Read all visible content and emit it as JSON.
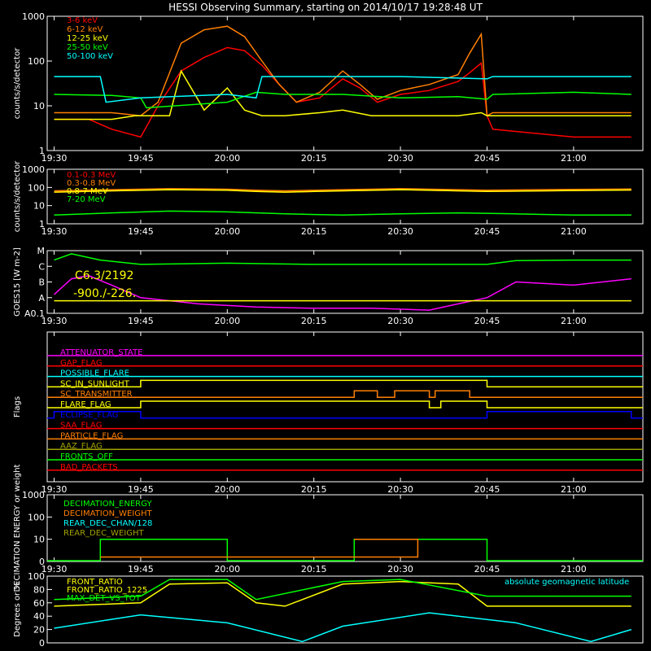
{
  "title": "HESSI Observing Summary, starting on 2014/10/17 19:28:48 UT",
  "colors": {
    "red": "#ff0000",
    "orange": "#ff7f00",
    "yellow": "#ffff00",
    "green": "#00ff00",
    "cyan": "#00ffff",
    "magenta": "#ff00ff",
    "blue": "#0000ff",
    "white": "#ffffff",
    "olive": "#a0a000",
    "lightgreen": "#00ff80",
    "brown": "#c07010"
  },
  "time_ticks": [
    "19:30",
    "19:45",
    "20:00",
    "20:15",
    "20:30",
    "20:45",
    "21:00"
  ],
  "chart_data": [
    {
      "type": "line",
      "panel": "x-ray-low",
      "ylabel": "counts/s/detector",
      "yscale": "log",
      "ylim": [
        1,
        1000
      ],
      "y_ticks": [
        "1",
        "10",
        "100",
        "1000"
      ],
      "x_unit": "UT time",
      "xlim": [
        "19:30",
        "21:10"
      ],
      "series": [
        {
          "name": "3-6 keV",
          "color": "#ff0000",
          "x": [
            "19:30",
            "19:36",
            "19:40",
            "19:45",
            "19:48",
            "19:52",
            "19:56",
            "20:00",
            "20:03",
            "20:06",
            "20:09",
            "20:12",
            "20:16",
            "20:20",
            "20:23",
            "20:26",
            "20:30",
            "20:35",
            "20:40",
            "20:42",
            "20:44",
            "20:45",
            "20:46",
            "21:00",
            "21:10"
          ],
          "y": [
            5,
            5,
            3,
            2,
            10,
            60,
            120,
            200,
            170,
            80,
            30,
            12,
            15,
            40,
            25,
            12,
            18,
            22,
            35,
            55,
            90,
            6,
            3,
            2,
            2
          ]
        },
        {
          "name": "6-12 keV",
          "color": "#ff7f00",
          "x": [
            "19:30",
            "19:40",
            "19:45",
            "19:48",
            "19:52",
            "19:56",
            "20:00",
            "20:03",
            "20:06",
            "20:09",
            "20:12",
            "20:16",
            "20:20",
            "20:23",
            "20:26",
            "20:30",
            "20:35",
            "20:40",
            "20:42",
            "20:44",
            "20:45",
            "20:46",
            "21:00",
            "21:10"
          ],
          "y": [
            7,
            7,
            6,
            12,
            250,
            500,
            600,
            350,
            100,
            30,
            12,
            20,
            60,
            30,
            14,
            22,
            30,
            50,
            150,
            400,
            6,
            7,
            7,
            7
          ]
        },
        {
          "name": "12-25 keV",
          "color": "#ffff00",
          "x": [
            "19:30",
            "19:40",
            "19:44",
            "19:45",
            "19:50",
            "19:52",
            "19:56",
            "20:00",
            "20:03",
            "20:06",
            "20:10",
            "20:16",
            "20:20",
            "20:25",
            "20:30",
            "20:40",
            "20:44",
            "20:45",
            "20:46",
            "21:00",
            "21:10"
          ],
          "y": [
            5,
            5,
            6,
            6,
            6,
            60,
            8,
            25,
            8,
            6,
            6,
            7,
            8,
            6,
            6,
            6,
            7,
            6,
            6,
            6,
            6
          ]
        },
        {
          "name": "25-50 keV",
          "color": "#00ff00",
          "x": [
            "19:30",
            "19:40",
            "19:45",
            "19:46",
            "20:00",
            "20:05",
            "20:10",
            "20:20",
            "20:30",
            "20:40",
            "20:45",
            "20:46",
            "21:00",
            "21:10"
          ],
          "y": [
            18,
            17,
            15,
            9,
            12,
            20,
            18,
            18,
            15,
            16,
            14,
            18,
            20,
            18
          ]
        },
        {
          "name": "50-100 keV",
          "color": "#00ffff",
          "x": [
            "19:30",
            "19:38",
            "19:39",
            "19:45",
            "20:00",
            "20:05",
            "20:06",
            "20:20",
            "20:30",
            "20:45",
            "20:46",
            "21:00",
            "21:10"
          ],
          "y": [
            45,
            45,
            12,
            15,
            18,
            15,
            45,
            45,
            45,
            40,
            45,
            45,
            45
          ]
        }
      ]
    },
    {
      "type": "line",
      "panel": "gamma",
      "ylabel": "counts/s/detector",
      "yscale": "log",
      "ylim": [
        1,
        1000
      ],
      "y_ticks": [
        "1",
        "10",
        "100",
        "1000"
      ],
      "xlim": [
        "19:30",
        "21:10"
      ],
      "series": [
        {
          "name": "0.1-0.3 MeV",
          "color": "#ff0000",
          "x": [
            "19:30",
            "19:40",
            "19:50",
            "20:00",
            "20:05",
            "20:10",
            "20:20",
            "20:30",
            "20:40",
            "20:45",
            "21:00",
            "21:10"
          ],
          "y": [
            55,
            65,
            75,
            70,
            60,
            55,
            65,
            75,
            65,
            60,
            68,
            72
          ]
        },
        {
          "name": "0.3-0.8 MeV",
          "color": "#ff7f00",
          "x": [
            "19:30",
            "19:40",
            "19:50",
            "20:00",
            "20:05",
            "20:10",
            "20:20",
            "20:30",
            "20:40",
            "20:45",
            "21:00",
            "21:10"
          ],
          "y": [
            65,
            75,
            85,
            80,
            70,
            65,
            75,
            85,
            75,
            70,
            78,
            82
          ]
        },
        {
          "name": "0.8-7 MeV",
          "color": "#ffff00",
          "x": [
            "19:30",
            "19:40",
            "19:50",
            "20:00",
            "20:05",
            "20:10",
            "20:20",
            "20:30",
            "20:40",
            "20:45",
            "21:00",
            "21:10"
          ],
          "y": [
            55,
            65,
            75,
            70,
            60,
            55,
            65,
            75,
            65,
            60,
            68,
            72
          ]
        },
        {
          "name": "7-20 MeV",
          "color": "#00ff00",
          "x": [
            "19:30",
            "19:40",
            "19:50",
            "20:00",
            "20:10",
            "20:20",
            "20:30",
            "20:40",
            "20:50",
            "21:00",
            "21:10"
          ],
          "y": [
            3,
            4,
            5,
            4.5,
            3.5,
            3,
            3.5,
            4,
            3.5,
            3,
            3
          ]
        }
      ]
    },
    {
      "type": "line",
      "panel": "goes",
      "ylabel": "GOES15 [W m-2]",
      "y_ticks": [
        "A0.1",
        "A",
        "B",
        "C",
        "M"
      ],
      "annotations": [
        "C6.3/2192",
        "-900./-226."
      ],
      "xlim": [
        "19:30",
        "21:10"
      ],
      "series": [
        {
          "color": "#00ff00",
          "x": [
            "19:30",
            "19:33",
            "19:38",
            "19:45",
            "20:00",
            "20:15",
            "20:30",
            "20:45",
            "20:50",
            "21:00",
            "21:10"
          ],
          "y": [
            0.85,
            0.95,
            0.85,
            0.78,
            0.8,
            0.78,
            0.78,
            0.78,
            0.84,
            0.85,
            0.85
          ]
        },
        {
          "color": "#ff00ff",
          "x": [
            "19:30",
            "19:33",
            "19:36",
            "19:40",
            "19:45",
            "19:55",
            "20:05",
            "20:15",
            "20:25",
            "20:35",
            "20:40",
            "20:45",
            "20:50",
            "21:00",
            "21:10"
          ],
          "y": [
            0.3,
            0.55,
            0.6,
            0.45,
            0.25,
            0.15,
            0.1,
            0.08,
            0.08,
            0.05,
            0.15,
            0.25,
            0.5,
            0.45,
            0.55
          ]
        },
        {
          "color": "#ffff00",
          "x": [
            "19:30",
            "21:10"
          ],
          "y": [
            0.2,
            0.2
          ]
        }
      ]
    },
    {
      "type": "line",
      "panel": "flags",
      "ylabel": "Flags",
      "series": [
        {
          "name": "ATTENUATOR_STATE",
          "color": "#ff00ff",
          "value": 0
        },
        {
          "name": "GAP_FLAG",
          "color": "#ff0000",
          "value": 0
        },
        {
          "name": "POSSIBLE_FLARE",
          "color": "#00ffff",
          "value": 0
        },
        {
          "name": "SC_IN_SUNLIGHT",
          "color": "#ffff00",
          "on_intervals": [
            [
              "19:45",
              "20:45"
            ]
          ]
        },
        {
          "name": "SC_TRANSMITTER",
          "color": "#ff7f00",
          "on_intervals": [
            [
              "20:22",
              "20:26"
            ],
            [
              "20:29",
              "20:35"
            ],
            [
              "20:36",
              "20:42"
            ]
          ]
        },
        {
          "name": "FLARE_FLAG",
          "color": "#ffff00",
          "on_intervals": [
            [
              "19:45",
              "20:35"
            ],
            [
              "20:37",
              "20:45"
            ]
          ]
        },
        {
          "name": "ECLIPSE_FLAG",
          "color": "#0000ff",
          "on_intervals": [
            [
              "19:30",
              "19:45"
            ],
            [
              "20:45",
              "21:10"
            ]
          ]
        },
        {
          "name": "SAA_FLAG",
          "color": "#ff0000",
          "value": 0
        },
        {
          "name": "PARTICLE_FLAG",
          "color": "#ff7f00",
          "value": 0
        },
        {
          "name": "AAZ_FLAG",
          "color": "#a0a000",
          "value": 0
        },
        {
          "name": "FRONTS_OFF",
          "color": "#00ff00",
          "value": 0
        },
        {
          "name": "BAD_PACKETS",
          "color": "#ff0000",
          "value": 0
        }
      ]
    },
    {
      "type": "line",
      "panel": "decimation",
      "ylabel": "DECIMATION ENERGY or weight",
      "y_ticks": [
        "0",
        "10",
        "100",
        "1000"
      ],
      "series": [
        {
          "name": "DECIMATION_ENERGY",
          "color": "#00ff00"
        },
        {
          "name": "DECIMATION_WEIGHT",
          "color": "#ff7f00"
        },
        {
          "name": "REAR_DEC_CHAN/128",
          "color": "#00ffff"
        },
        {
          "name": "REAR_DEC_WEIGHT",
          "color": "#a0a000"
        }
      ]
    },
    {
      "type": "line",
      "panel": "ratios",
      "ylabel": "Degrees or %",
      "ylim": [
        0,
        100
      ],
      "y_ticks": [
        "0",
        "20",
        "40",
        "60",
        "80",
        "100"
      ],
      "series": [
        {
          "name": "FRONT_RATIO",
          "color": "#ffff00",
          "x": [
            "19:30",
            "19:45",
            "19:50",
            "20:00",
            "20:05",
            "20:10",
            "20:20",
            "20:30",
            "20:40",
            "20:45",
            "21:00",
            "21:10"
          ],
          "y": [
            55,
            60,
            88,
            90,
            60,
            55,
            88,
            92,
            88,
            55,
            55,
            55
          ]
        },
        {
          "name": "FRONT_RATIO_1225",
          "color": "#ffff00"
        },
        {
          "name": "MAX_DET_VS_TOT",
          "color": "#00ff00",
          "x": [
            "19:30",
            "19:45",
            "19:50",
            "20:00",
            "20:05",
            "20:20",
            "20:30",
            "20:45",
            "21:00",
            "21:10"
          ],
          "y": [
            65,
            70,
            95,
            95,
            65,
            92,
            95,
            70,
            70,
            70
          ]
        },
        {
          "name": "absolute geomagnetic latitude",
          "color": "#00ffff",
          "x": [
            "19:30",
            "19:45",
            "20:00",
            "20:13",
            "20:20",
            "20:35",
            "20:50",
            "21:03",
            "21:10"
          ],
          "y": [
            22,
            42,
            30,
            2,
            25,
            45,
            30,
            2,
            20
          ]
        }
      ]
    }
  ]
}
